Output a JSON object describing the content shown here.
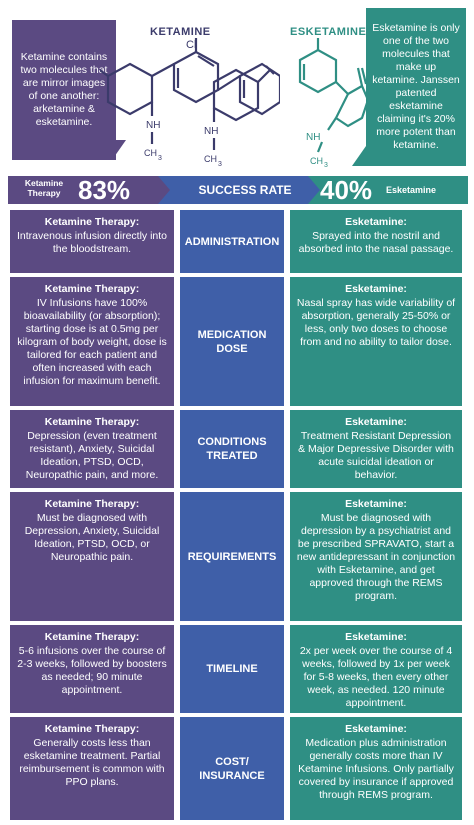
{
  "left_callout": "Ketamine contains two molecules that are mirror images of one another: arketamine & esketamine.",
  "right_callout": "Esketamine is only one of the two molecules that make up ketamine. Janssen patented esketamine claiming it's 20% more potent than ketamine.",
  "molecules": {
    "ketamine": {
      "title": "KETAMINE",
      "cl": "Cl",
      "o": "O",
      "nh": "NH",
      "ch3": "CH",
      "sub": "3"
    },
    "esketamine": {
      "title": "ESKETAMINE",
      "nh": "NH",
      "ch3": "CH",
      "sub": "3"
    }
  },
  "banner": {
    "left_label": "Ketamine Therapy",
    "left_percent": "83%",
    "center": "SUCCESS RATE",
    "right_percent": "40%",
    "right_label": "Esketamine"
  },
  "colors": {
    "purple": "#5b4a82",
    "blue": "#3f5fa8",
    "teal": "#2f8f84"
  },
  "rows": [
    {
      "category": "ADMINISTRATION",
      "left_header": "Ketamine Therapy:",
      "left_text": "Intravenous infusion directly into the bloodstream.",
      "right_header": "Esketamine:",
      "right_text": "Sprayed into the nostril and absorbed into the nasal passage."
    },
    {
      "category": "MEDICATION DOSE",
      "left_header": "Ketamine Therapy:",
      "left_text": "IV Infusions have 100% bioavailability (or absorption); starting dose is at 0.5mg per kilogram of body weight, dose is tailored for each patient and often increased with each infusion for maximum benefit.",
      "right_header": "Esketamine:",
      "right_text": "Nasal spray has wide variability of absorption, generally 25-50% or less, only two doses to choose from and no ability to tailor dose."
    },
    {
      "category": "CONDITIONS TREATED",
      "left_header": "Ketamine Therapy:",
      "left_text": "Depression (even treatment resistant), Anxiety, Suicidal Ideation, PTSD, OCD, Neuropathic pain, and more.",
      "right_header": "Esketamine:",
      "right_text": "Treatment Resistant Depression & Major Depressive Disorder with acute suicidal ideation or behavior."
    },
    {
      "category": "REQUIREMENTS",
      "left_header": "Ketamine Therapy:",
      "left_text": "Must be diagnosed with Depression, Anxiety, Suicidal Ideation, PTSD, OCD, or Neuropathic pain.",
      "right_header": "Esketamine:",
      "right_text": "Must be diagnosed with depression by a psychiatrist and be prescribed SPRAVATO, start a new antidepressant in conjunction with Esketamine, and get approved through the REMS program."
    },
    {
      "category": "TIMELINE",
      "left_header": "Ketamine Therapy:",
      "left_text": "5-6 infusions over the course of 2-3 weeks, followed by boosters as needed; 90 minute appointment.",
      "right_header": "Esketamine:",
      "right_text": "2x per week over the course of 4 weeks, followed by 1x per week for 5-8 weeks, then every other week, as needed. 120 minute appointment."
    },
    {
      "category": "COST/ INSURANCE",
      "left_header": "Ketamine Therapy:",
      "left_text": "Generally costs less than esketamine treatment. Partial reimbursement is common with PPO plans.",
      "right_header": "Esketamine:",
      "right_text": "Medication plus administration generally costs more than IV Ketamine Infusions. Only partially covered by insurance if approved through REMS program."
    }
  ]
}
